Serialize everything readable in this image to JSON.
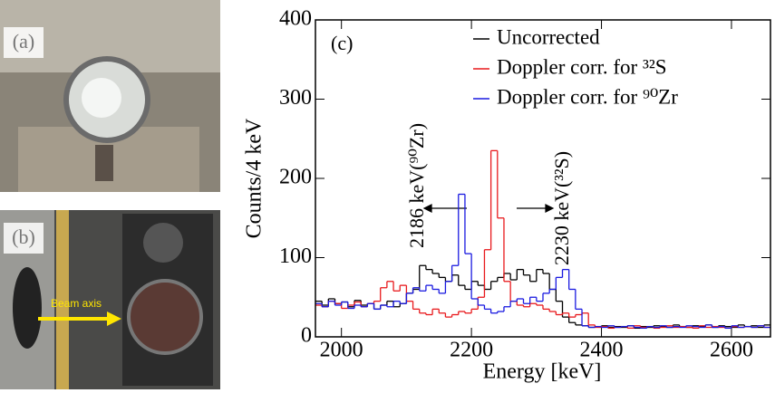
{
  "panels": {
    "a": "(a)",
    "b": "(b)",
    "beam": "Beam axis"
  },
  "chart_data": {
    "type": "histogram",
    "label": "(c)",
    "xlabel": "Energy [keV]",
    "ylabel": "Counts/4 keV",
    "xlim": [
      1960,
      2660
    ],
    "ylim": [
      0,
      400
    ],
    "xticks": [
      2000,
      2200,
      2400,
      2600
    ],
    "yticks": [
      0,
      100,
      200,
      300,
      400
    ],
    "bins": [
      1960,
      1970,
      1980,
      1990,
      2000,
      2010,
      2020,
      2030,
      2040,
      2050,
      2060,
      2070,
      2080,
      2090,
      2100,
      2110,
      2120,
      2130,
      2140,
      2150,
      2160,
      2170,
      2180,
      2190,
      2200,
      2210,
      2220,
      2230,
      2240,
      2250,
      2260,
      2270,
      2280,
      2290,
      2300,
      2310,
      2320,
      2330,
      2340,
      2350,
      2360,
      2370,
      2380,
      2390,
      2400,
      2410,
      2420,
      2430,
      2440,
      2450,
      2460,
      2470,
      2480,
      2490,
      2500,
      2510,
      2520,
      2530,
      2540,
      2550,
      2560,
      2570,
      2580,
      2590,
      2600,
      2610,
      2620,
      2630,
      2640,
      2650,
      2660
    ],
    "annotations": [
      "2186 keV(⁹⁰Zr)",
      "2230 keV(³²S)"
    ],
    "series": [
      {
        "name": "Uncorrected",
        "color": "#000000",
        "values": [
          45,
          40,
          48,
          42,
          44,
          38,
          46,
          40,
          42,
          35,
          40,
          45,
          38,
          42,
          55,
          60,
          90,
          85,
          80,
          75,
          70,
          78,
          65,
          60,
          70,
          65,
          60,
          70,
          75,
          80,
          72,
          85,
          78,
          70,
          85,
          80,
          60,
          45,
          25,
          18,
          15,
          14,
          12,
          13,
          14,
          12,
          13,
          12,
          14,
          11,
          13,
          12,
          14,
          13,
          12,
          15,
          13,
          12,
          14,
          13,
          15,
          12,
          14,
          13,
          12,
          15,
          13,
          14,
          12,
          15
        ]
      },
      {
        "name": "Doppler corr. for ³²S",
        "color": "#e8191c",
        "values": [
          40,
          38,
          45,
          42,
          36,
          40,
          44,
          38,
          42,
          45,
          62,
          70,
          58,
          65,
          45,
          35,
          30,
          28,
          35,
          30,
          25,
          28,
          32,
          30,
          35,
          50,
          110,
          235,
          150,
          70,
          45,
          40,
          38,
          42,
          40,
          35,
          32,
          28,
          30,
          25,
          28,
          30,
          15,
          12,
          13,
          11,
          12,
          13,
          11,
          14,
          12,
          13,
          11,
          12,
          14,
          12,
          13,
          12,
          11,
          14,
          12,
          13,
          12,
          11,
          13,
          12,
          13,
          12,
          14,
          12
        ]
      },
      {
        "name": "Doppler corr. for ⁹⁰Zr",
        "color": "#1a1ae0",
        "values": [
          42,
          38,
          45,
          40,
          44,
          36,
          40,
          38,
          42,
          35,
          40,
          38,
          45,
          42,
          55,
          62,
          58,
          65,
          60,
          55,
          70,
          90,
          180,
          105,
          48,
          40,
          35,
          30,
          32,
          38,
          45,
          48,
          42,
          50,
          45,
          55,
          60,
          75,
          85,
          60,
          35,
          14,
          12,
          13,
          12,
          14,
          12,
          13,
          14,
          12,
          11,
          13,
          12,
          14,
          12,
          13,
          12,
          14,
          13,
          12,
          15,
          12,
          13,
          11,
          14,
          12,
          13,
          12,
          14,
          12
        ]
      }
    ]
  }
}
